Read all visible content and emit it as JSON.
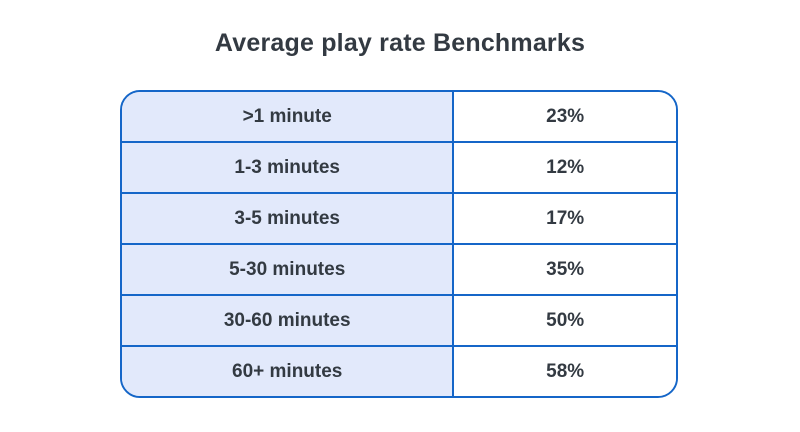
{
  "title": "Average play rate Benchmarks",
  "colors": {
    "border_blue": "#1566c8",
    "left_cell_bg": "#e2e9fb",
    "right_cell_bg": "#ffffff",
    "text_dark": "#333a42",
    "page_bg": "#ffffff"
  },
  "table": {
    "rows": [
      {
        "label": ">1 minute",
        "value": "23%"
      },
      {
        "label": "1-3 minutes",
        "value": "12%"
      },
      {
        "label": "3-5 minutes",
        "value": "17%"
      },
      {
        "label": "5-30 minutes",
        "value": "35%"
      },
      {
        "label": "30-60 minutes",
        "value": "50%"
      },
      {
        "label": "60+ minutes",
        "value": "58%"
      }
    ]
  },
  "chart_data": {
    "type": "table",
    "title": "Average play rate Benchmarks",
    "categories": [
      ">1 minute",
      "1-3 minutes",
      "3-5 minutes",
      "5-30 minutes",
      "30-60 minutes",
      "60+ minutes"
    ],
    "values": [
      "23%",
      "12%",
      "17%",
      "35%",
      "50%",
      "58%"
    ],
    "values_numeric": [
      23,
      12,
      17,
      35,
      50,
      58
    ],
    "legend": "none",
    "grid": "cell-borders"
  }
}
